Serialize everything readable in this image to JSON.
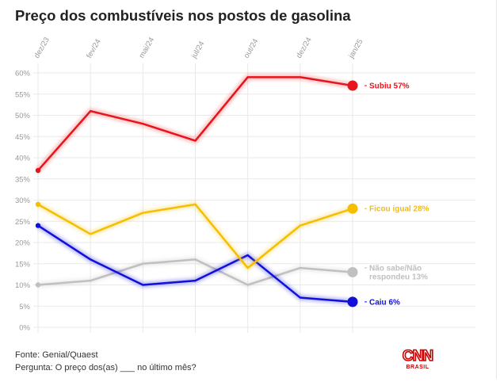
{
  "title": "Preço dos combustíveis nos postos de gasolina",
  "footer": {
    "source": "Fonte: Genial/Quaest",
    "question": "Pergunta: O preço dos(as) ___ no último mês?"
  },
  "logo": {
    "main": "CNN",
    "sub": "BRASIL"
  },
  "colors": {
    "grid": "#e9e9e9",
    "tick": "#999999",
    "logo": "#cc0000"
  },
  "chart_data": {
    "type": "line",
    "title": "Preço dos combustíveis nos postos de gasolina",
    "x": [
      "dez/23",
      "fev/24",
      "mai/24",
      "jul/24",
      "out/24",
      "dez/24",
      "jan/25"
    ],
    "y_ticks": [
      "60%",
      "55%",
      "50%",
      "45%",
      "40%",
      "35%",
      "30%",
      "25%",
      "20%",
      "15%",
      "10%",
      "5%",
      "0%"
    ],
    "ylim": [
      0,
      60
    ],
    "grid": true,
    "series": [
      {
        "name": "Subiu",
        "end_label": "Subiu 57%",
        "color": "#e8141b",
        "values": [
          37,
          51,
          48,
          44,
          59,
          59,
          57
        ]
      },
      {
        "name": "Ficou igual",
        "end_label": "Ficou igual 28%",
        "color": "#f6be00",
        "values": [
          29,
          22,
          27,
          29,
          14,
          24,
          28
        ]
      },
      {
        "name": "Não sabe/Não respondeu",
        "end_label_lines": [
          "Não sabe/Não",
          "respondeu 13%"
        ],
        "color": "#c0c0c0",
        "values": [
          10,
          11,
          15,
          16,
          10,
          14,
          13
        ]
      },
      {
        "name": "Caiu",
        "end_label": "Caiu 6%",
        "color": "#1010d8",
        "values": [
          24,
          16,
          10,
          11,
          17,
          7,
          6
        ]
      }
    ]
  }
}
